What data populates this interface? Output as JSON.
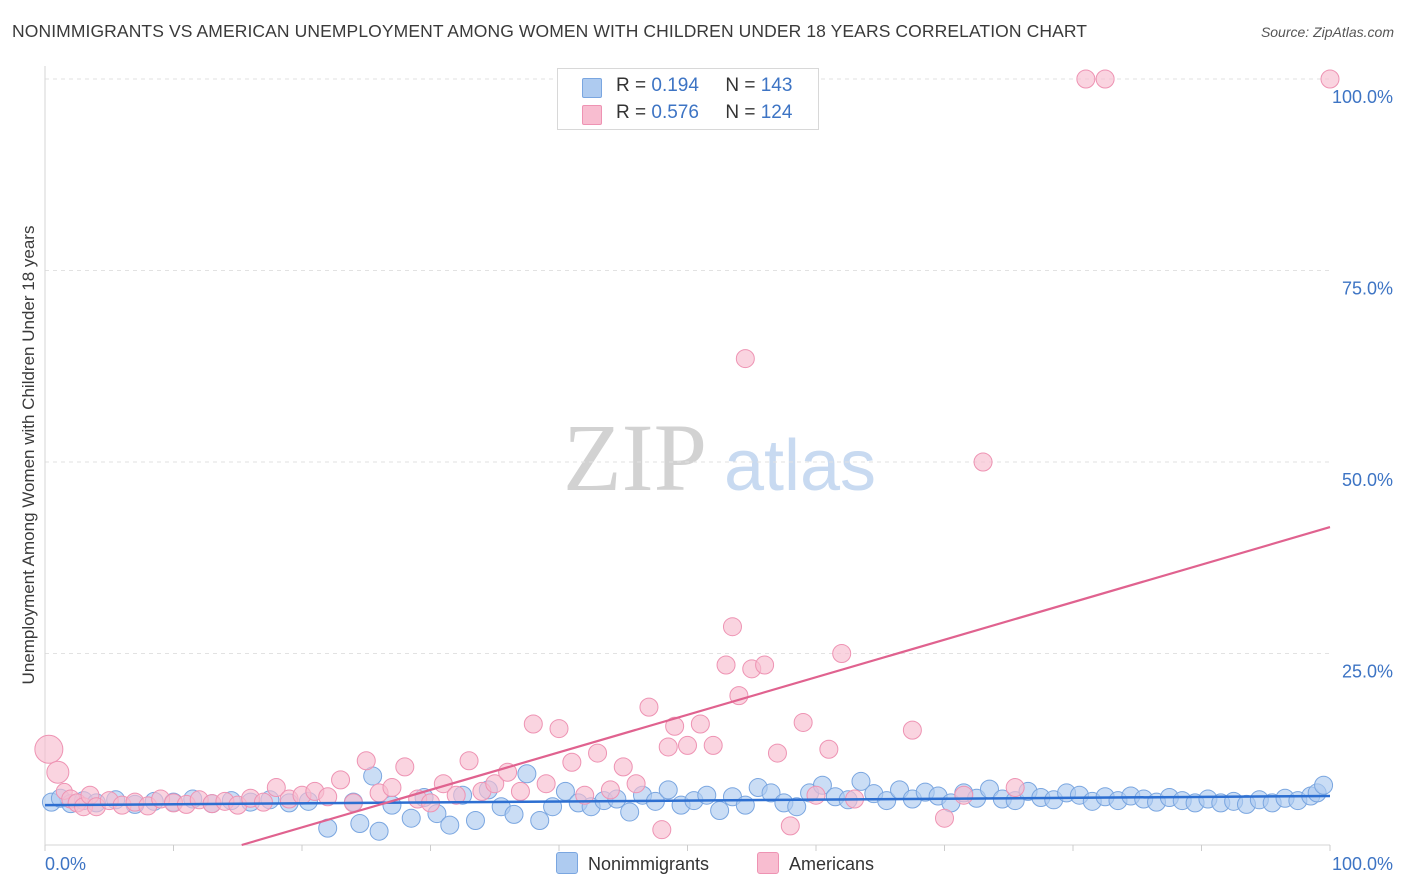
{
  "title": "NONIMMIGRANTS VS AMERICAN UNEMPLOYMENT AMONG WOMEN WITH CHILDREN UNDER 18 YEARS CORRELATION CHART",
  "source": "Source: ZipAtlas.com",
  "watermark": {
    "zip": "ZIP",
    "atlas": "atlas"
  },
  "legend": {
    "rows": [
      {
        "r_label": "R =",
        "r_value": "0.194",
        "n_label": "N =",
        "n_value": "143"
      },
      {
        "r_label": "R =",
        "r_value": "0.576",
        "n_label": "N =",
        "n_value": "124"
      }
    ]
  },
  "bottom_legend": [
    "Nonimmigrants",
    "Americans"
  ],
  "colors": {
    "blue_fill": "#aecbf0",
    "blue_stroke": "#7aa6e0",
    "blue_line": "#2d6fd1",
    "pink_fill": "#f8bdd0",
    "pink_stroke": "#ee93b3",
    "pink_line": "#e0628f",
    "axis_text": "#3d74c4",
    "grid": "#e2e2e2"
  },
  "chart_data": {
    "type": "scatter",
    "title": "NONIMMIGRANTS VS AMERICAN UNEMPLOYMENT AMONG WOMEN WITH CHILDREN UNDER 18 YEARS CORRELATION CHART",
    "xlabel": "",
    "ylabel": "Unemployment Among Women with Children Under 18 years",
    "xlim": [
      0,
      100
    ],
    "ylim": [
      0,
      100
    ],
    "x_tick_labels": [
      "0.0%",
      "100.0%"
    ],
    "y_tick_labels": [
      {
        "value": 25,
        "label": "25.0%"
      },
      {
        "value": 50,
        "label": "50.0%"
      },
      {
        "value": 75,
        "label": "75.0%"
      },
      {
        "value": 100,
        "label": "100.0%"
      }
    ],
    "grid": true,
    "legend_position": "top-center",
    "series": [
      {
        "name": "Nonimmigrants",
        "r": 0.194,
        "n": 143,
        "trend": {
          "x": [
            0,
            100
          ],
          "y": [
            5.2,
            6.4
          ]
        },
        "points": [
          [
            0.5,
            5.6
          ],
          [
            1.2,
            6.1
          ],
          [
            2.0,
            5.4
          ],
          [
            3.0,
            5.8
          ],
          [
            4.0,
            5.5
          ],
          [
            5.5,
            5.9
          ],
          [
            7.0,
            5.3
          ],
          [
            8.5,
            5.7
          ],
          [
            10,
            5.6
          ],
          [
            11.5,
            6.0
          ],
          [
            13,
            5.4
          ],
          [
            14.5,
            5.8
          ],
          [
            16,
            5.6
          ],
          [
            17.5,
            5.9
          ],
          [
            19,
            5.5
          ],
          [
            20.5,
            5.7
          ],
          [
            22,
            2.2
          ],
          [
            24,
            5.6
          ],
          [
            24.5,
            2.8
          ],
          [
            25.5,
            9.0
          ],
          [
            26,
            1.8
          ],
          [
            27,
            5.2
          ],
          [
            28.5,
            3.5
          ],
          [
            29.5,
            6.2
          ],
          [
            30.5,
            4.1
          ],
          [
            31.5,
            2.6
          ],
          [
            32.5,
            6.5
          ],
          [
            33.5,
            3.2
          ],
          [
            34.5,
            7.2
          ],
          [
            35.5,
            5.0
          ],
          [
            36.5,
            4.0
          ],
          [
            37.5,
            9.3
          ],
          [
            38.5,
            3.2
          ],
          [
            39.5,
            5.0
          ],
          [
            40.5,
            7.0
          ],
          [
            41.5,
            5.5
          ],
          [
            42.5,
            5.0
          ],
          [
            43.5,
            5.8
          ],
          [
            44.5,
            6.0
          ],
          [
            45.5,
            4.3
          ],
          [
            46.5,
            6.5
          ],
          [
            47.5,
            5.7
          ],
          [
            48.5,
            7.2
          ],
          [
            49.5,
            5.2
          ],
          [
            50.5,
            5.8
          ],
          [
            51.5,
            6.5
          ],
          [
            52.5,
            4.5
          ],
          [
            53.5,
            6.3
          ],
          [
            54.5,
            5.2
          ],
          [
            55.5,
            7.5
          ],
          [
            56.5,
            6.8
          ],
          [
            57.5,
            5.5
          ],
          [
            58.5,
            5.0
          ],
          [
            59.5,
            6.8
          ],
          [
            60.5,
            7.8
          ],
          [
            61.5,
            6.3
          ],
          [
            62.5,
            5.9
          ],
          [
            63.5,
            8.3
          ],
          [
            64.5,
            6.7
          ],
          [
            65.5,
            5.8
          ],
          [
            66.5,
            7.2
          ],
          [
            67.5,
            6.0
          ],
          [
            68.5,
            6.9
          ],
          [
            69.5,
            6.4
          ],
          [
            70.5,
            5.5
          ],
          [
            71.5,
            6.8
          ],
          [
            72.5,
            6.1
          ],
          [
            73.5,
            7.3
          ],
          [
            74.5,
            6.0
          ],
          [
            75.5,
            5.8
          ],
          [
            76.5,
            7.0
          ],
          [
            77.5,
            6.2
          ],
          [
            78.5,
            5.9
          ],
          [
            79.5,
            6.8
          ],
          [
            80.5,
            6.5
          ],
          [
            81.5,
            5.7
          ],
          [
            82.5,
            6.3
          ],
          [
            83.5,
            5.8
          ],
          [
            84.5,
            6.4
          ],
          [
            85.5,
            6.0
          ],
          [
            86.5,
            5.6
          ],
          [
            87.5,
            6.2
          ],
          [
            88.5,
            5.8
          ],
          [
            89.5,
            5.5
          ],
          [
            90.5,
            6.0
          ],
          [
            91.5,
            5.5
          ],
          [
            92.5,
            5.7
          ],
          [
            93.5,
            5.3
          ],
          [
            94.5,
            5.9
          ],
          [
            95.5,
            5.5
          ],
          [
            96.5,
            6.1
          ],
          [
            97.5,
            5.8
          ],
          [
            98.5,
            6.4
          ],
          [
            99.0,
            6.8
          ],
          [
            99.5,
            7.8
          ]
        ]
      },
      {
        "name": "Americans",
        "r": 0.576,
        "n": 124,
        "trend": {
          "x": [
            0,
            100
          ],
          "y": [
            -7.5,
            41.5
          ]
        },
        "points": [
          [
            0.3,
            12.5
          ],
          [
            1.0,
            9.5
          ],
          [
            1.5,
            7.0
          ],
          [
            2.0,
            6.0
          ],
          [
            2.5,
            5.5
          ],
          [
            3.0,
            5.0
          ],
          [
            3.5,
            6.5
          ],
          [
            4.0,
            5.0
          ],
          [
            5.0,
            5.8
          ],
          [
            6.0,
            5.2
          ],
          [
            7.0,
            5.6
          ],
          [
            8.0,
            5.1
          ],
          [
            9.0,
            6.0
          ],
          [
            10.0,
            5.5
          ],
          [
            11.0,
            5.3
          ],
          [
            12.0,
            5.9
          ],
          [
            13.0,
            5.4
          ],
          [
            14.0,
            5.7
          ],
          [
            15.0,
            5.2
          ],
          [
            16.0,
            6.1
          ],
          [
            17.0,
            5.6
          ],
          [
            18.0,
            7.5
          ],
          [
            19.0,
            6.0
          ],
          [
            20.0,
            6.5
          ],
          [
            21.0,
            7.0
          ],
          [
            22.0,
            6.3
          ],
          [
            23.0,
            8.5
          ],
          [
            24.0,
            5.5
          ],
          [
            25.0,
            11.0
          ],
          [
            26.0,
            6.8
          ],
          [
            27.0,
            7.5
          ],
          [
            28.0,
            10.2
          ],
          [
            29.0,
            6.0
          ],
          [
            30.0,
            5.5
          ],
          [
            31.0,
            8.0
          ],
          [
            32.0,
            6.5
          ],
          [
            33.0,
            11.0
          ],
          [
            34.0,
            7.0
          ],
          [
            35.0,
            8.0
          ],
          [
            36.0,
            9.5
          ],
          [
            37.0,
            7.0
          ],
          [
            38.0,
            15.8
          ],
          [
            39.0,
            8.0
          ],
          [
            40.0,
            15.2
          ],
          [
            41.0,
            10.8
          ],
          [
            42.0,
            6.5
          ],
          [
            43.0,
            12.0
          ],
          [
            44.0,
            7.2
          ],
          [
            45.0,
            10.2
          ],
          [
            46.0,
            8.0
          ],
          [
            47.0,
            18.0
          ],
          [
            48.0,
            2.0
          ],
          [
            48.5,
            12.8
          ],
          [
            49.0,
            15.5
          ],
          [
            50.0,
            13.0
          ],
          [
            51.0,
            15.8
          ],
          [
            52.0,
            13.0
          ],
          [
            53.0,
            23.5
          ],
          [
            53.5,
            28.5
          ],
          [
            54.0,
            19.5
          ],
          [
            54.5,
            63.5
          ],
          [
            55.0,
            23.0
          ],
          [
            56.0,
            23.5
          ],
          [
            57.0,
            12.0
          ],
          [
            58.0,
            2.5
          ],
          [
            59.0,
            16.0
          ],
          [
            60.0,
            6.5
          ],
          [
            61.0,
            12.5
          ],
          [
            62.0,
            25.0
          ],
          [
            63.0,
            6.0
          ],
          [
            67.5,
            15.0
          ],
          [
            70.0,
            3.5
          ],
          [
            71.5,
            6.5
          ],
          [
            73.0,
            50.0
          ],
          [
            75.5,
            7.5
          ],
          [
            81.0,
            100.0
          ],
          [
            82.5,
            100.0
          ],
          [
            100.0,
            100.0
          ]
        ]
      }
    ]
  }
}
